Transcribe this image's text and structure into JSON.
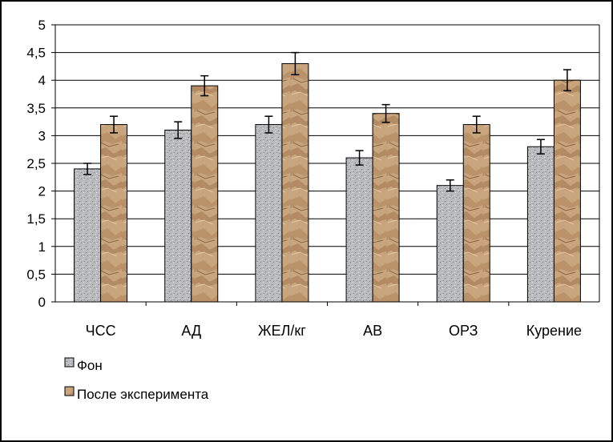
{
  "chart_data": {
    "type": "bar",
    "categories": [
      "ЧСС",
      "АД",
      "ЖЕЛ/кг",
      "АВ",
      "ОРЗ",
      "Курение"
    ],
    "series": [
      {
        "name": "Фон",
        "values": [
          2.4,
          3.1,
          3.2,
          2.6,
          2.1,
          2.8
        ],
        "errors": [
          0.1,
          0.15,
          0.15,
          0.13,
          0.1,
          0.13
        ],
        "color": "#b9babd"
      },
      {
        "name": "После эксперимента",
        "values": [
          3.2,
          3.9,
          4.3,
          3.4,
          3.2,
          4.0
        ],
        "errors": [
          0.15,
          0.18,
          0.2,
          0.16,
          0.15,
          0.19
        ],
        "color": "#c9a57e"
      }
    ],
    "ylim": [
      0,
      5
    ],
    "yticks": [
      "0",
      "0,5",
      "1",
      "1,5",
      "2",
      "2,5",
      "3",
      "3,5",
      "4",
      "4,5",
      "5"
    ],
    "grid": true,
    "legend_position": "bottom-left"
  }
}
